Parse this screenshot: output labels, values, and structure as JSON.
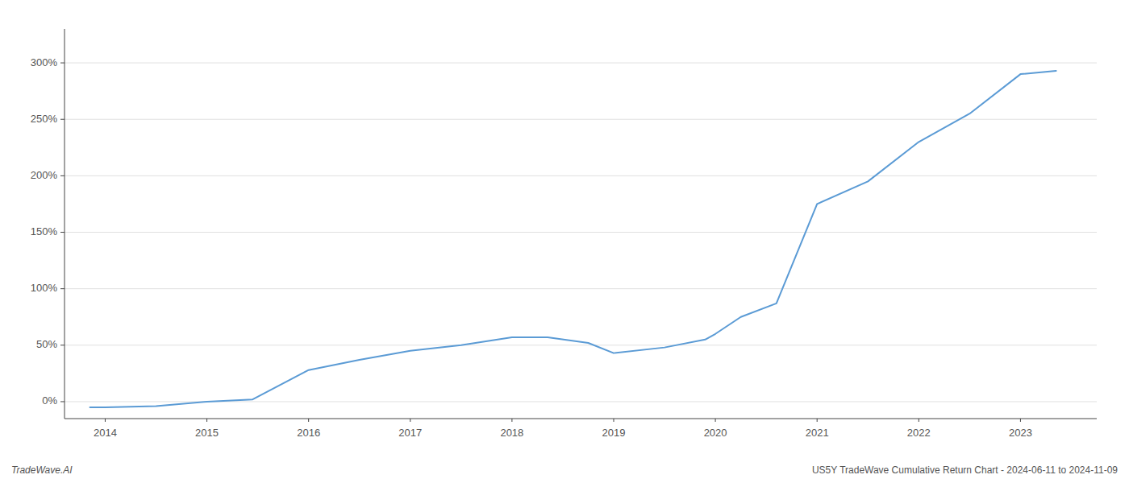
{
  "chart_data": {
    "type": "line",
    "x": [
      2013.85,
      2014.0,
      2014.5,
      2015.0,
      2015.45,
      2016.0,
      2016.5,
      2017.0,
      2017.5,
      2018.0,
      2018.35,
      2018.75,
      2019.0,
      2019.5,
      2019.9,
      2020.0,
      2020.25,
      2020.6,
      2021.0,
      2021.5,
      2022.0,
      2022.5,
      2023.0,
      2023.35
    ],
    "values": [
      -5,
      -5,
      -4,
      0,
      2,
      28,
      37,
      45,
      50,
      57,
      57,
      52,
      43,
      48,
      55,
      60,
      75,
      87,
      175,
      195,
      230,
      255,
      290,
      293
    ],
    "color": "#5B9BD5",
    "xlim": [
      2013.6,
      2023.75
    ],
    "ylim": [
      -15,
      330
    ],
    "xticks": [
      2014,
      2015,
      2016,
      2017,
      2018,
      2019,
      2020,
      2021,
      2022,
      2023
    ],
    "yticks": [
      {
        "value": 0,
        "label": "0%"
      },
      {
        "value": 50,
        "label": "50%"
      },
      {
        "value": 100,
        "label": "100%"
      },
      {
        "value": 150,
        "label": "150%"
      },
      {
        "value": 200,
        "label": "200%"
      },
      {
        "value": 250,
        "label": "250%"
      },
      {
        "value": 300,
        "label": "300%"
      }
    ],
    "grid": "y",
    "annotations": [
      "TradeWave.AI",
      "US5Y TradeWave Cumulative Return Chart - 2024-06-11 to 2024-11-09"
    ]
  }
}
